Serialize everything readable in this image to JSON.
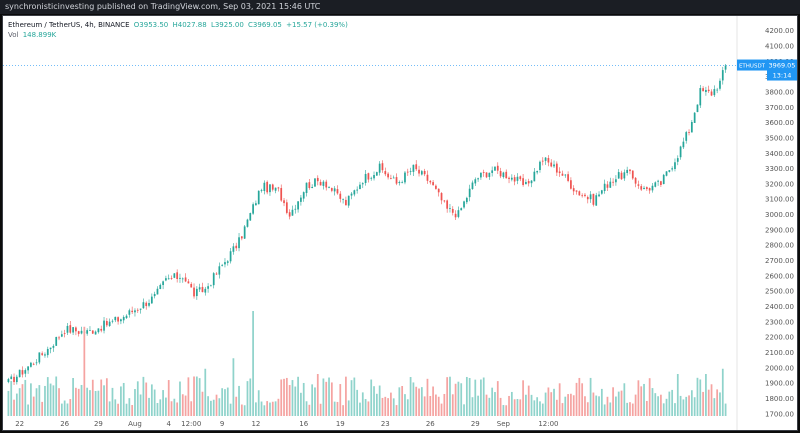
{
  "topbar": {
    "text": "synchronisticinvesting published on TradingView.com, Sep 03, 2021 15:46 UTC"
  },
  "header": {
    "pair": "Ethereum / TetherUS, 4h, BINANCE",
    "open": "O3953.50",
    "high": "H4027.88",
    "low": "L3925.00",
    "close": "C3969.05",
    "change": "+15.57 (+0.39%)",
    "vol_label": "Vol",
    "vol_value": "148.899K"
  },
  "price_tag": {
    "symbol": "ETHUSDT",
    "price": "3969.05",
    "countdown": "13:14"
  },
  "colors": {
    "up": "#26a69a",
    "down": "#ef5350",
    "vol_up": "#8fd3cb",
    "vol_down": "#f5a3a1",
    "tag": "#2196f3",
    "axis_text": "#555555",
    "background": "#ffffff"
  },
  "chart_data": {
    "type": "candlestick",
    "title": "Ethereum / TetherUS, 4h, BINANCE",
    "y_axis": {
      "position": "right",
      "ticks": [
        1700,
        1800,
        1900,
        2000,
        2100,
        2200,
        2300,
        2400,
        2500,
        2600,
        2700,
        2800,
        2900,
        3000,
        3100,
        3200,
        3300,
        3400,
        3500,
        3600,
        3700,
        3800,
        3900,
        4000,
        4100,
        4200
      ],
      "range": [
        1650,
        4240
      ]
    },
    "x_axis": {
      "ticks": [
        "22",
        "26",
        "29",
        "Aug",
        "4",
        "12:00",
        "9",
        "12",
        "16",
        "19",
        "23",
        "26",
        "29",
        "Sep",
        "12:00"
      ]
    },
    "grid": false,
    "volume_panel": true,
    "keypoints": [
      {
        "i": 0,
        "price": 1900
      },
      {
        "i": 6,
        "price": 1990
      },
      {
        "i": 14,
        "price": 2120
      },
      {
        "i": 20,
        "price": 2250
      },
      {
        "i": 28,
        "price": 2230
      },
      {
        "i": 40,
        "price": 2320
      },
      {
        "i": 52,
        "price": 2460
      },
      {
        "i": 56,
        "price": 2570
      },
      {
        "i": 62,
        "price": 2600
      },
      {
        "i": 66,
        "price": 2480
      },
      {
        "i": 70,
        "price": 2510
      },
      {
        "i": 75,
        "price": 2640
      },
      {
        "i": 82,
        "price": 2820
      },
      {
        "i": 90,
        "price": 3180
      },
      {
        "i": 96,
        "price": 3150
      },
      {
        "i": 100,
        "price": 3000
      },
      {
        "i": 106,
        "price": 3190
      },
      {
        "i": 112,
        "price": 3220
      },
      {
        "i": 116,
        "price": 3140
      },
      {
        "i": 120,
        "price": 3070
      },
      {
        "i": 126,
        "price": 3230
      },
      {
        "i": 132,
        "price": 3300
      },
      {
        "i": 138,
        "price": 3200
      },
      {
        "i": 144,
        "price": 3300
      },
      {
        "i": 150,
        "price": 3210
      },
      {
        "i": 156,
        "price": 3030
      },
      {
        "i": 160,
        "price": 3000
      },
      {
        "i": 166,
        "price": 3230
      },
      {
        "i": 172,
        "price": 3290
      },
      {
        "i": 178,
        "price": 3250
      },
      {
        "i": 184,
        "price": 3180
      },
      {
        "i": 190,
        "price": 3360
      },
      {
        "i": 196,
        "price": 3280
      },
      {
        "i": 202,
        "price": 3150
      },
      {
        "i": 208,
        "price": 3090
      },
      {
        "i": 214,
        "price": 3220
      },
      {
        "i": 220,
        "price": 3270
      },
      {
        "i": 226,
        "price": 3160
      },
      {
        "i": 232,
        "price": 3200
      },
      {
        "i": 238,
        "price": 3390
      },
      {
        "i": 242,
        "price": 3550
      },
      {
        "i": 246,
        "price": 3800
      },
      {
        "i": 250,
        "price": 3790
      },
      {
        "i": 253,
        "price": 3860
      },
      {
        "i": 255,
        "price": 3969.05
      }
    ],
    "volume_spikes": [
      {
        "i": 27,
        "value": 0.85
      },
      {
        "i": 87,
        "value": 1.0
      },
      {
        "i": 80,
        "value": 0.55
      },
      {
        "i": 70,
        "value": 0.45
      },
      {
        "i": 110,
        "value": 0.4
      },
      {
        "i": 238,
        "value": 0.4
      },
      {
        "i": 248,
        "value": 0.4
      },
      {
        "i": 254,
        "value": 0.45
      }
    ]
  }
}
